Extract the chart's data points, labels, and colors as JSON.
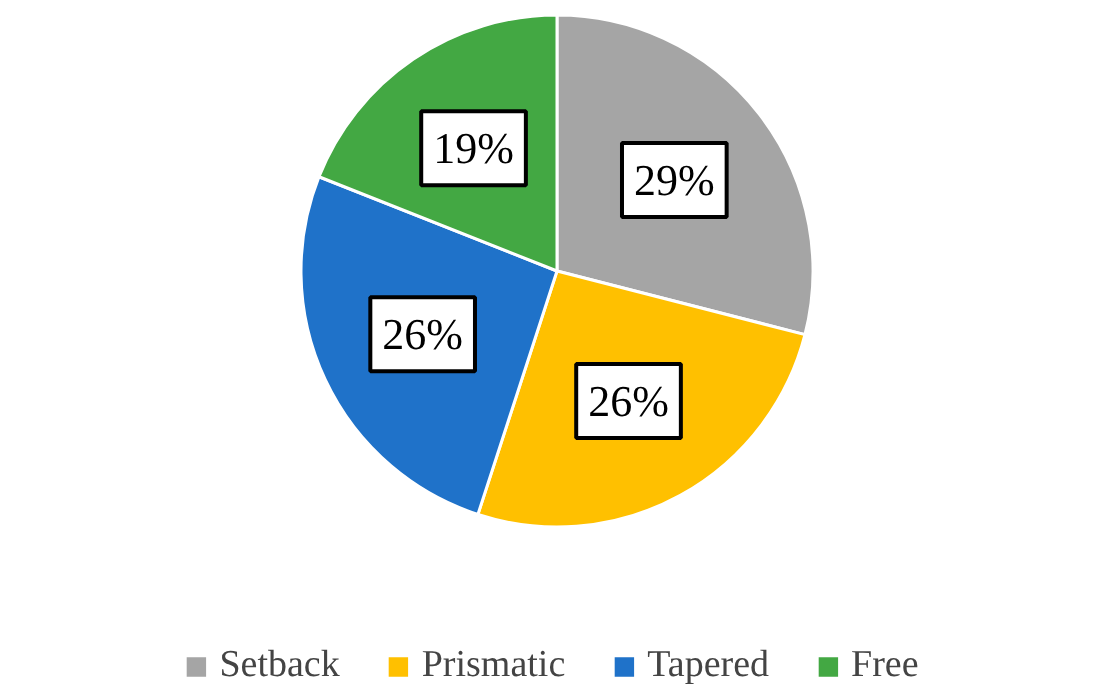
{
  "chart_data": {
    "type": "pie",
    "categories": [
      "Setback",
      "Prismatic",
      "Tapered",
      "Free"
    ],
    "values": [
      29,
      26,
      26,
      19
    ],
    "colors": [
      "#a5a5a5",
      "#ffc000",
      "#1f72c9",
      "#43a843"
    ],
    "value_labels": [
      "29%",
      "26%",
      "26%",
      "19%"
    ],
    "legend": "bottom"
  }
}
